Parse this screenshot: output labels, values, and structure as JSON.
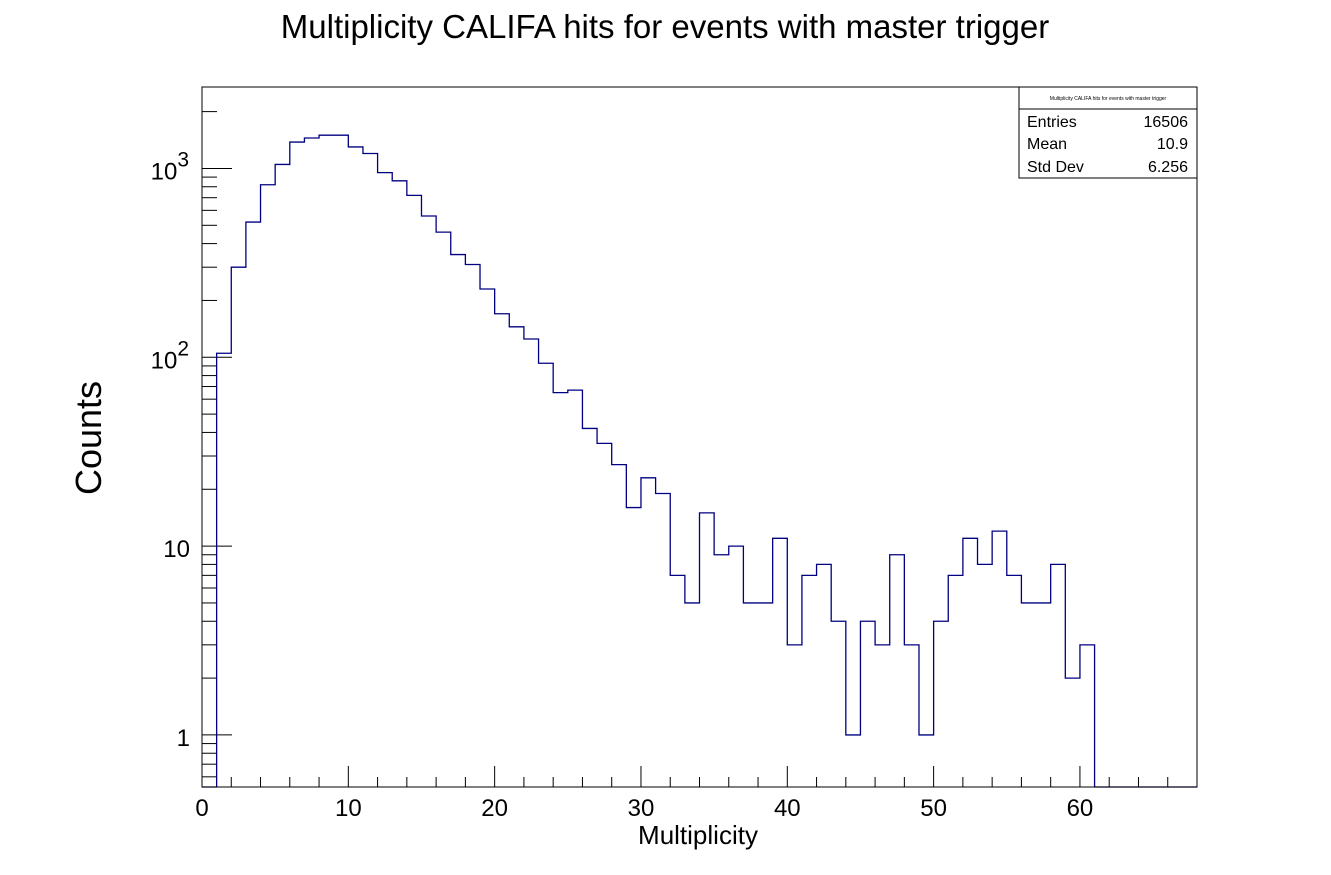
{
  "chart_data": {
    "type": "histogram",
    "title": "Multiplicity CALIFA hits for events with master trigger",
    "xlabel": "Multiplicity",
    "ylabel": "Counts",
    "xlim": [
      0,
      68
    ],
    "ylim": [
      0.53,
      2700
    ],
    "yscale": "log",
    "bin_width": 1,
    "x_ticks": [
      "0",
      "10",
      "20",
      "30",
      "40",
      "50",
      "60"
    ],
    "y_ticks": [
      "1",
      "10",
      "10^2",
      "10^3"
    ],
    "line_color": "#000080",
    "bins": [
      0,
      1,
      2,
      3,
      4,
      5,
      6,
      7,
      8,
      9,
      10,
      11,
      12,
      13,
      14,
      15,
      16,
      17,
      18,
      19,
      20,
      21,
      22,
      23,
      24,
      25,
      26,
      27,
      28,
      29,
      30,
      31,
      32,
      33,
      34,
      35,
      36,
      37,
      38,
      39,
      40,
      41,
      42,
      43,
      44,
      45,
      46,
      47,
      48,
      49,
      50,
      51,
      52,
      53,
      54,
      55,
      56,
      57,
      58,
      59,
      60,
      61,
      62,
      63,
      64,
      65,
      66,
      67
    ],
    "values": [
      0,
      105,
      300,
      520,
      820,
      1050,
      1380,
      1450,
      1500,
      1500,
      1300,
      1200,
      950,
      860,
      720,
      560,
      460,
      350,
      310,
      230,
      170,
      145,
      125,
      93,
      65,
      67,
      42,
      35,
      27,
      16,
      23,
      19,
      7,
      5,
      15,
      9,
      10,
      5,
      5,
      11,
      3,
      7,
      8,
      4,
      1,
      4,
      3,
      9,
      3,
      1,
      4,
      7,
      11,
      8,
      12,
      7,
      5,
      5,
      8,
      2,
      3,
      0,
      0,
      0,
      0,
      0,
      0,
      0
    ],
    "stats": {
      "title": "Multiplicity CALIFA hits for events with master trigger",
      "rows": [
        {
          "label": "Entries",
          "value": "16506"
        },
        {
          "label": "Mean",
          "value": "10.9"
        },
        {
          "label": "Std Dev",
          "value": "6.256"
        }
      ]
    }
  }
}
